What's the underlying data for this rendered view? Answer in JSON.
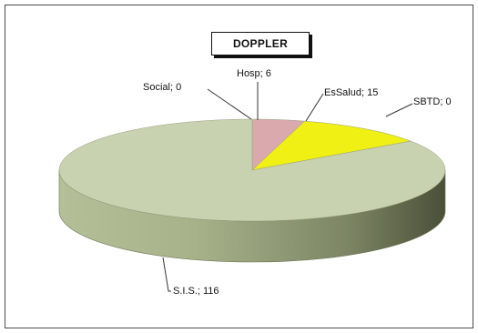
{
  "chart_data": {
    "type": "pie",
    "title": "DOPPLER",
    "categories": [
      "Social",
      "Hosp",
      "EsSalud",
      "SBTD",
      "S.I.S."
    ],
    "values": [
      0,
      6,
      15,
      0,
      116
    ],
    "data_labels": [
      "Social;  0",
      "Hosp;  6",
      "EsSalud;  15",
      "SBTD;  0",
      "S.I.S.;  116"
    ],
    "colors": [
      "#d9a9ae",
      "#d9a9ae",
      "#f0f014",
      "#c8d2b0",
      "#c8d2b0"
    ],
    "style": "3d",
    "legend": "none"
  }
}
